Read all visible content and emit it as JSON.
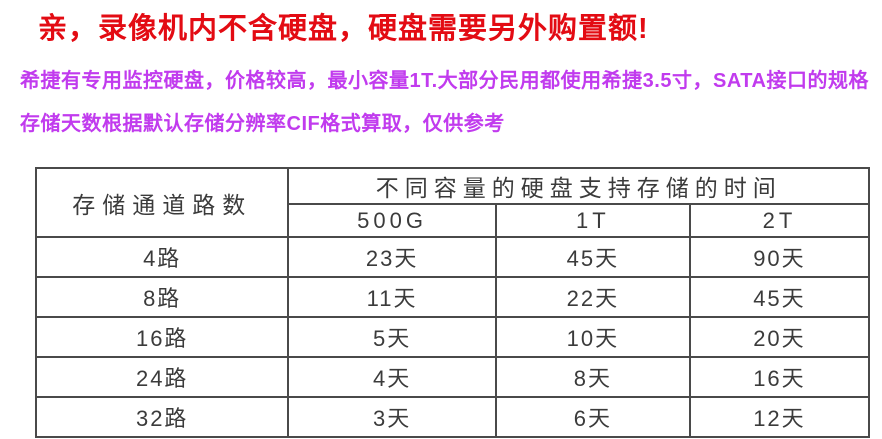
{
  "page": {
    "title": "亲，录像机内不含硬盘，硬盘需要另外购置额!",
    "notes": [
      "希捷有专用监控硬盘，价格较高，最小容量1T.大部分民用都使用希捷3.5寸，SATA接口的规格",
      "存储天数根据默认存储分辨率CIF格式算取，仅供参考"
    ]
  },
  "colors": {
    "title_red": "#e30b13",
    "note_magenta": "#c13bee",
    "table_border": "#4a4a4a",
    "table_text": "#3b3b3b"
  },
  "table": {
    "channel_header": "存储通道路数",
    "capacity_header": "不同容量的硬盘支持存储的时间",
    "capacity_columns": [
      "500G",
      "1T",
      "2T"
    ],
    "rows": [
      {
        "channels": "4路",
        "days": [
          "23天",
          "45天",
          "90天"
        ]
      },
      {
        "channels": "8路",
        "days": [
          "11天",
          "22天",
          "45天"
        ]
      },
      {
        "channels": "16路",
        "days": [
          "5天",
          "10天",
          "20天"
        ]
      },
      {
        "channels": "24路",
        "days": [
          "4天",
          "8天",
          "16天"
        ]
      },
      {
        "channels": "32路",
        "days": [
          "3天",
          "6天",
          "12天"
        ]
      }
    ]
  }
}
